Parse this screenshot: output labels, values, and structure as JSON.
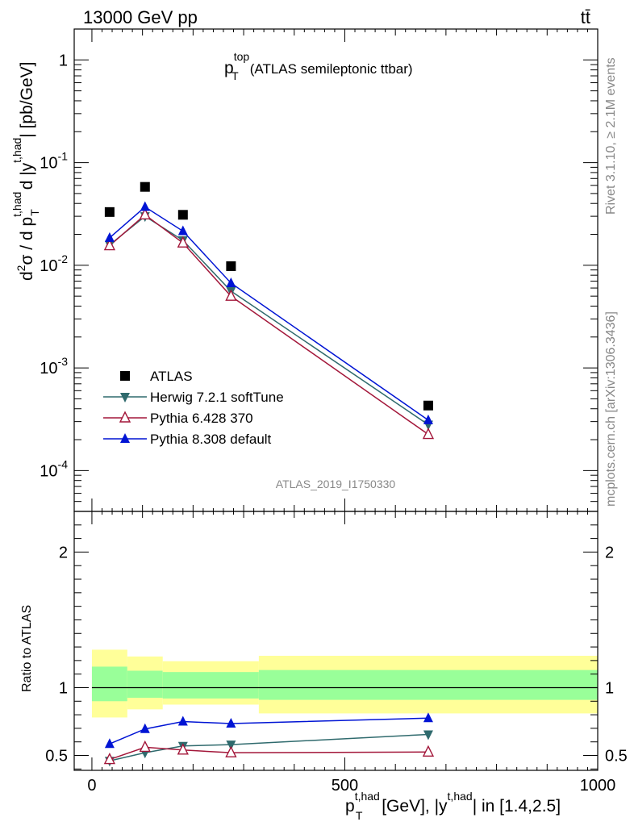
{
  "header": {
    "left": "13000 GeV pp",
    "right": "tt̄"
  },
  "side": {
    "rivet": "Rivet 3.1.10, ≥ 2.1M events",
    "mcplots": "mcplots.cern.ch [arXiv:1306.3436]"
  },
  "plot_title": {
    "main": "p",
    "sup": "top",
    "sub": "T",
    "rest": "(ATLAS semileptonic ttbar)"
  },
  "analysis_id": "ATLAS_2019_I1750330",
  "ylabel_top": {
    "d": "d",
    "two": "2",
    "sigma_sep": "σ  /  d p",
    "sup1": "t,had",
    "sub1": "T",
    "mid": " d |y",
    "sup2": "t,had",
    "end": "| [pb/GeV]"
  },
  "ylabel_bottom": "Ratio to ATLAS",
  "xlabel": {
    "p": "p",
    "sup1": "t,had",
    "sub1": "T",
    "mid": " [GeV], |y",
    "sup2": "t,had",
    "end": "| in [1.4,2.5]"
  },
  "colors": {
    "atlas": "#000000",
    "herwig": "#2f6a6d",
    "pythia6": "#a3173a",
    "pythia8": "#0014d4",
    "band_inner": "#99ff99",
    "band_outer": "#ffff99"
  },
  "chart_data": [
    {
      "type": "scatter",
      "title": "p_T^top (ATLAS semileptonic ttbar)",
      "ylabel": "d²σ / d p_T^{t,had} d |y^{t,had}| [pb/GeV]",
      "yscale": "log",
      "xlim": [
        -35,
        1000
      ],
      "ylim": [
        4e-05,
        2
      ],
      "y_tick_labels": [
        "10^-4",
        "10^-3",
        "10^-2",
        "10^-1",
        "1"
      ],
      "legend_position": "bottom-left",
      "x": [
        35,
        105,
        180,
        275,
        665
      ],
      "series": [
        {
          "name": "ATLAS",
          "marker": "square",
          "values": [
            0.033,
            0.058,
            0.031,
            0.0098,
            0.00043
          ]
        },
        {
          "name": "Herwig 7.2.1 softTune",
          "marker": "triangle-down",
          "values": [
            0.0158,
            0.03,
            0.0175,
            0.0056,
            0.00028
          ]
        },
        {
          "name": "Pythia 6.428 370",
          "marker": "triangle-up-open",
          "values": [
            0.0155,
            0.031,
            0.0165,
            0.005,
            0.000225
          ]
        },
        {
          "name": "Pythia 8.308 default",
          "marker": "triangle-up",
          "values": [
            0.0185,
            0.037,
            0.0215,
            0.0067,
            0.00031
          ]
        }
      ]
    },
    {
      "type": "line",
      "ylabel": "Ratio to ATLAS",
      "xlabel": "p_T^{t,had} [GeV], |y^{t,had}| in [1.4,2.5]",
      "xlim": [
        -35,
        1000
      ],
      "ylim": [
        0.39,
        2.3
      ],
      "x_ticks": [
        0,
        500,
        1000
      ],
      "y_ticks": [
        0.5,
        1,
        2
      ],
      "reference_line": 1,
      "uncertainty_bands": {
        "bin_edges": [
          0,
          70,
          140,
          330,
          1000
        ],
        "inner_low": [
          0.9,
          0.925,
          0.92,
          0.91
        ],
        "inner_high": [
          1.155,
          1.125,
          1.115,
          1.13
        ],
        "outer_low": [
          0.78,
          0.84,
          0.875,
          0.81
        ],
        "outer_high": [
          1.28,
          1.23,
          1.195,
          1.235
        ]
      },
      "x": [
        35,
        105,
        180,
        275,
        665
      ],
      "series": [
        {
          "name": "Herwig 7.2.1 softTune",
          "values": [
            0.46,
            0.52,
            0.57,
            0.58,
            0.655
          ]
        },
        {
          "name": "Pythia 6.428 370",
          "values": [
            0.47,
            0.56,
            0.54,
            0.52,
            0.525
          ]
        },
        {
          "name": "Pythia 8.308 default",
          "values": [
            0.585,
            0.695,
            0.75,
            0.735,
            0.775
          ]
        }
      ]
    }
  ]
}
